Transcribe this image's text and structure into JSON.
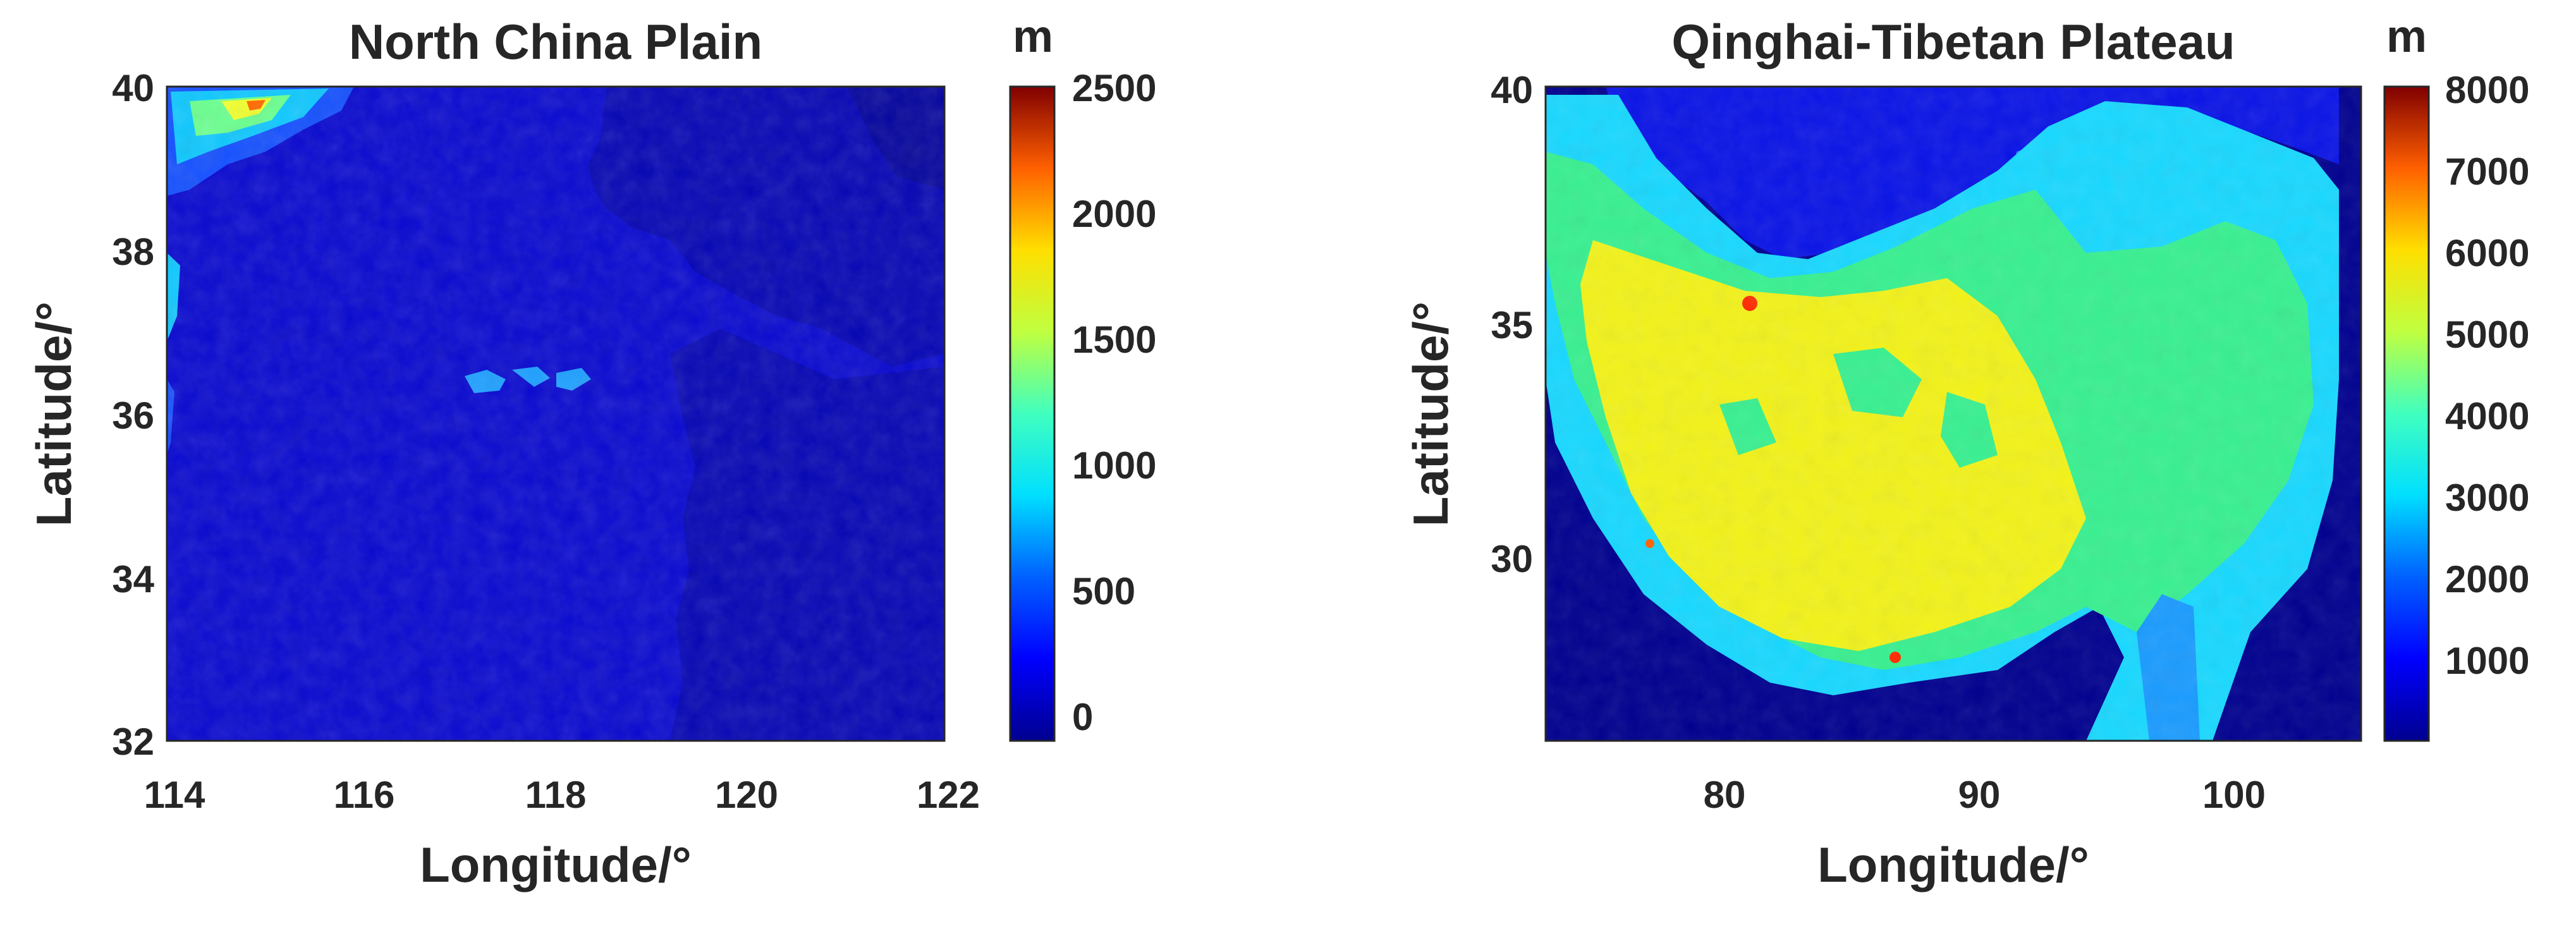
{
  "panels": [
    {
      "title": "North China Plain",
      "xlabel": "Longitude/°",
      "ylabel": "Latitude/°",
      "xticks": [
        "114",
        "116",
        "118",
        "120",
        "122"
      ],
      "yticks": [
        "40",
        "38",
        "36",
        "34",
        "32"
      ],
      "xlim": [
        114,
        122
      ],
      "ylim": [
        32,
        40
      ],
      "colorbar": {
        "unit": "m",
        "ticks": [
          "2500",
          "2000",
          "1500",
          "1000",
          "500",
          "0"
        ],
        "range": [
          -100,
          2500
        ]
      }
    },
    {
      "title": "Qinghai-Tibetan Plateau",
      "xlabel": "Longitude/°",
      "ylabel": "Latitude/°",
      "xticks": [
        "80",
        "90",
        "100"
      ],
      "yticks": [
        "40",
        "35",
        "30"
      ],
      "xlim": [
        73,
        105
      ],
      "ylim": [
        26,
        40
      ],
      "colorbar": {
        "unit": "m",
        "ticks": [
          "8000",
          "7000",
          "6000",
          "5000",
          "4000",
          "3000",
          "2000",
          "1000"
        ],
        "range": [
          0,
          8000
        ]
      }
    }
  ],
  "colors": {
    "background": "#ffffff",
    "colormap": [
      "#00008f",
      "#0000ff",
      "#0080ff",
      "#00ffff",
      "#80ff80",
      "#ffff00",
      "#ff8000",
      "#ff0000",
      "#800000"
    ],
    "text": "#262626"
  }
}
